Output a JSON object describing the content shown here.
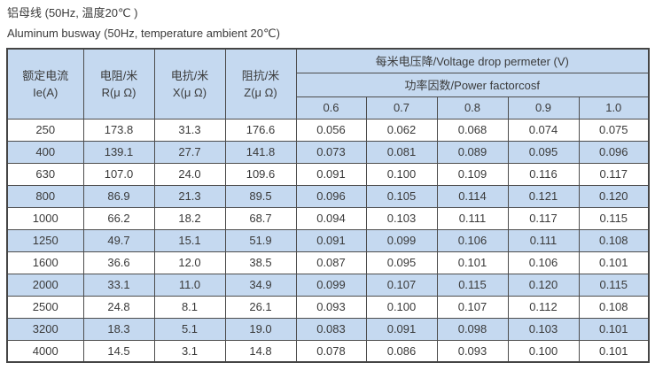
{
  "page": {
    "title_zh": "铝母线 (50Hz, 温度20℃ )",
    "title_en": "Aluminum busway (50Hz, temperature ambient 20℃)"
  },
  "colors": {
    "header_bg": "#c5d9f0",
    "row_alt_bg": "#c5d9f0",
    "border": "#4d4d4d",
    "text": "#3a3a3a"
  },
  "table": {
    "header": {
      "col_current_zh": "额定电流",
      "col_current_en": "Ie(A)",
      "col_resistance_zh": "电阻/米",
      "col_resistance_en": "R(μ Ω)",
      "col_reactance_zh": "电抗/米",
      "col_reactance_en": "X(μ Ω)",
      "col_impedance_zh": "阻抗/米",
      "col_impedance_en": "Z(μ Ω)",
      "voltage_drop_group": "每米电压降/Voltage drop permeter (V)",
      "power_factor_group": "功率因数/Power factorcosf",
      "power_factors": [
        "0.6",
        "0.7",
        "0.8",
        "0.9",
        "1.0"
      ]
    },
    "rows": [
      [
        "250",
        "173.8",
        "31.3",
        "176.6",
        "0.056",
        "0.062",
        "0.068",
        "0.074",
        "0.075"
      ],
      [
        "400",
        "139.1",
        "27.7",
        "141.8",
        "0.073",
        "0.081",
        "0.089",
        "0.095",
        "0.096"
      ],
      [
        "630",
        "107.0",
        "24.0",
        "109.6",
        "0.091",
        "0.100",
        "0.109",
        "0.116",
        "0.117"
      ],
      [
        "800",
        "86.9",
        "21.3",
        "89.5",
        "0.096",
        "0.105",
        "0.114",
        "0.121",
        "0.120"
      ],
      [
        "1000",
        "66.2",
        "18.2",
        "68.7",
        "0.094",
        "0.103",
        "0.111",
        "0.117",
        "0.115"
      ],
      [
        "1250",
        "49.7",
        "15.1",
        "51.9",
        "0.091",
        "0.099",
        "0.106",
        "0.111",
        "0.108"
      ],
      [
        "1600",
        "36.6",
        "12.0",
        "38.5",
        "0.087",
        "0.095",
        "0.101",
        "0.106",
        "0.101"
      ],
      [
        "2000",
        "33.1",
        "11.0",
        "34.9",
        "0.099",
        "0.107",
        "0.115",
        "0.120",
        "0.115"
      ],
      [
        "2500",
        "24.8",
        "8.1",
        "26.1",
        "0.093",
        "0.100",
        "0.107",
        "0.112",
        "0.108"
      ],
      [
        "3200",
        "18.3",
        "5.1",
        "19.0",
        "0.083",
        "0.091",
        "0.098",
        "0.103",
        "0.101"
      ],
      [
        "4000",
        "14.5",
        "3.1",
        "14.8",
        "0.078",
        "0.086",
        "0.093",
        "0.100",
        "0.101"
      ]
    ]
  }
}
